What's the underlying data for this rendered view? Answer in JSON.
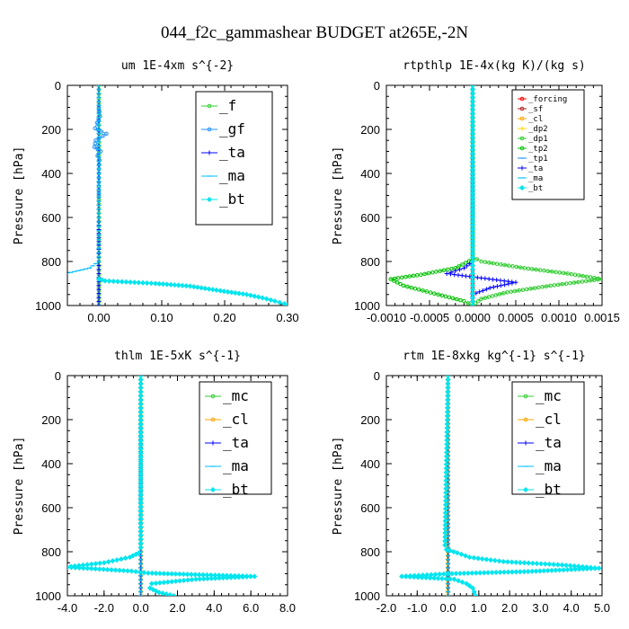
{
  "suptitle": "044_f2c_gammashear  BUDGET at265E,-2N",
  "colors": {
    "forcing": "#ff0000",
    "sf": "#b22222",
    "cl": "#ffa500",
    "dp2": "#ffd700",
    "dp1": "#32cd32",
    "tp2": "#00c000",
    "tp1": "#1e90ff",
    "ta": "#0000ff",
    "ma": "#00bfff",
    "bt": "#00e5ee",
    "f": "#32cd32",
    "gf": "#1e90ff",
    "mc": "#32cd32"
  },
  "chart_data": [
    {
      "type": "line",
      "title": "um  1E-4xm s^{-2}",
      "ylabel": "Pressure [hPa]",
      "xlim": [
        -0.05,
        0.3
      ],
      "ylim": [
        1000,
        0
      ],
      "xticks": [
        0.0,
        0.1,
        0.2,
        0.3
      ],
      "xtick_labels": [
        "0.00",
        "0.10",
        "0.20",
        "0.30"
      ],
      "yticks": [
        0,
        200,
        400,
        600,
        800,
        1000
      ],
      "ytick_labels": [
        "0",
        "200",
        "400",
        "600",
        "800",
        "1000"
      ],
      "legend_position": "top-right",
      "legend_style": "large",
      "series": [
        {
          "name": "_f",
          "color_key": "f",
          "x": [
            0,
            0,
            0,
            0,
            0,
            0,
            0,
            0,
            0,
            0,
            0,
            0
          ],
          "y": [
            0,
            100,
            200,
            300,
            400,
            500,
            600,
            700,
            800,
            900,
            950,
            1000
          ]
        },
        {
          "name": "_gf",
          "color_key": "gf",
          "x": [
            0.0,
            0.002,
            -0.003,
            -0.006,
            0.004,
            0.012,
            -0.005,
            -0.007,
            0.003,
            -0.002,
            0.001,
            0.0,
            0.0
          ],
          "y": [
            100,
            140,
            170,
            195,
            210,
            220,
            250,
            280,
            300,
            320,
            340,
            400,
            500
          ]
        },
        {
          "name": "_ta",
          "color_key": "ta",
          "x": [
            0,
            0,
            0,
            0,
            0,
            0
          ],
          "y": [
            0,
            200,
            400,
            600,
            800,
            1000
          ]
        },
        {
          "name": "_ma",
          "color_key": "ma",
          "x": [
            0.0,
            0.0,
            0.0,
            0.0,
            0.0,
            0.0,
            0.0,
            -0.015,
            -0.045,
            -0.06
          ],
          "y": [
            0,
            200,
            400,
            600,
            700,
            780,
            800,
            830,
            850,
            860
          ]
        },
        {
          "name": "_bt",
          "color_key": "bt",
          "x": [
            0.0,
            0.01,
            0.09,
            0.145,
            0.175,
            0.205,
            0.235,
            0.26,
            0.28,
            0.295,
            0.3
          ],
          "y": [
            880,
            888,
            900,
            912,
            925,
            938,
            950,
            965,
            980,
            992,
            1000
          ]
        }
      ]
    },
    {
      "type": "line",
      "title": "rtpthlp  1E-4x(kg K)/(kg s)",
      "ylabel": "Pressure [hPa]",
      "xlim": [
        -0.001,
        0.0015
      ],
      "ylim": [
        1000,
        0
      ],
      "xticks": [
        -0.001,
        -0.0005,
        0.0,
        0.0005,
        0.001,
        0.0015
      ],
      "xtick_labels": [
        "-0.0010",
        "-0.0005",
        "0.0000",
        "0.0005",
        "0.0010",
        "0.0015"
      ],
      "yticks": [
        0,
        200,
        400,
        600,
        800,
        1000
      ],
      "ytick_labels": [
        "0",
        "200",
        "400",
        "600",
        "800",
        "1000"
      ],
      "legend_position": "top-right",
      "legend_style": "small",
      "series": [
        {
          "name": "_forcing",
          "color_key": "forcing",
          "x": [
            0,
            0,
            0,
            0,
            0,
            0,
            0
          ],
          "y": [
            0,
            200,
            400,
            600,
            800,
            900,
            1000
          ]
        },
        {
          "name": "_sf",
          "color_key": "sf",
          "x": [
            0,
            0,
            0,
            0,
            0,
            0
          ],
          "y": [
            0,
            200,
            400,
            600,
            800,
            1000
          ]
        },
        {
          "name": "_cl",
          "color_key": "cl",
          "x": [
            0,
            0,
            0,
            0,
            0,
            0
          ],
          "y": [
            0,
            200,
            400,
            600,
            800,
            1000
          ]
        },
        {
          "name": "_dp2",
          "color_key": "dp2",
          "x": [
            0,
            0,
            0,
            0,
            0,
            0
          ],
          "y": [
            0,
            200,
            400,
            600,
            800,
            1000
          ]
        },
        {
          "name": "_dp1",
          "color_key": "dp1",
          "x": [
            0.0,
            0.0,
            0.0001,
            0.0006,
            0.0011,
            0.0015,
            0.0009,
            0.0004,
            0.0001,
            0.0
          ],
          "y": [
            0,
            780,
            800,
            830,
            855,
            880,
            910,
            940,
            970,
            1000
          ]
        },
        {
          "name": "_tp2",
          "color_key": "tp2",
          "x": [
            0.0,
            0.0,
            -0.0002,
            -0.0006,
            -0.00095,
            -0.0008,
            -0.0004,
            -0.0001,
            0.0
          ],
          "y": [
            0,
            790,
            830,
            860,
            880,
            910,
            950,
            980,
            1000
          ]
        },
        {
          "name": "_tp1",
          "color_key": "tp1",
          "x": [
            0,
            0,
            0,
            0,
            0
          ],
          "y": [
            0,
            200,
            500,
            800,
            1000
          ]
        },
        {
          "name": "_ta",
          "color_key": "ta",
          "x": [
            0.0,
            0.0,
            -0.0001,
            -0.0003,
            0.0001,
            0.0005,
            0.0002,
            0.0,
            0.0
          ],
          "y": [
            0,
            800,
            830,
            855,
            875,
            895,
            920,
            950,
            1000
          ]
        },
        {
          "name": "_ma",
          "color_key": "ma",
          "x": [
            0,
            0,
            0,
            0,
            0,
            0
          ],
          "y": [
            0,
            200,
            400,
            600,
            800,
            1000
          ]
        },
        {
          "name": "_bt",
          "color_key": "bt",
          "x": [
            0,
            0,
            0,
            0,
            0,
            0
          ],
          "y": [
            0,
            200,
            400,
            600,
            800,
            1000
          ]
        }
      ]
    },
    {
      "type": "line",
      "title": "thlm  1E-5xK s^{-1}",
      "ylabel": "Pressure [hPa]",
      "xlim": [
        -4.0,
        8.0
      ],
      "ylim": [
        1000,
        0
      ],
      "xticks": [
        -4.0,
        -2.0,
        0.0,
        2.0,
        4.0,
        6.0,
        8.0
      ],
      "xtick_labels": [
        "-4.0",
        "-2.0",
        "0.0",
        "2.0",
        "4.0",
        "6.0",
        "8.0"
      ],
      "yticks": [
        0,
        200,
        400,
        600,
        800,
        1000
      ],
      "ytick_labels": [
        "0",
        "200",
        "400",
        "600",
        "800",
        "1000"
      ],
      "legend_position": "top-right",
      "legend_style": "large",
      "series": [
        {
          "name": "_mc",
          "color_key": "mc",
          "x": [
            0,
            0,
            0,
            0,
            0,
            0
          ],
          "y": [
            0,
            200,
            400,
            600,
            800,
            1000
          ]
        },
        {
          "name": "_cl",
          "color_key": "cl",
          "x": [
            0,
            0,
            0,
            0,
            0,
            0
          ],
          "y": [
            0,
            200,
            400,
            600,
            800,
            1000
          ]
        },
        {
          "name": "_ta",
          "color_key": "ta",
          "x": [
            0,
            0,
            0,
            0,
            0,
            0
          ],
          "y": [
            0,
            200,
            400,
            600,
            800,
            1000
          ]
        },
        {
          "name": "_ma",
          "color_key": "ma",
          "x": [
            0,
            0,
            0,
            0,
            0,
            0
          ],
          "y": [
            0,
            200,
            400,
            600,
            800,
            1000
          ]
        },
        {
          "name": "_bt",
          "color_key": "bt",
          "x": [
            0.0,
            0.0,
            -0.1,
            -0.6,
            -2.0,
            -3.6,
            -4.0,
            -0.5,
            0.4,
            3.4,
            6.2,
            3.0,
            0.6,
            0.5,
            1.0,
            1.8
          ],
          "y": [
            0,
            780,
            805,
            825,
            850,
            865,
            870,
            888,
            897,
            905,
            912,
            925,
            945,
            965,
            985,
            1000
          ]
        }
      ]
    },
    {
      "type": "line",
      "title": "rtm  1E-8xkg kg^{-1} s^{-1}",
      "ylabel": "Pressure [hPa]",
      "xlim": [
        -2.0,
        5.0
      ],
      "ylim": [
        1000,
        0
      ],
      "xticks": [
        -2.0,
        -1.0,
        0.0,
        1.0,
        2.0,
        3.0,
        4.0,
        5.0
      ],
      "xtick_labels": [
        "-2.0",
        "-1.0",
        "0.0",
        "1.0",
        "2.0",
        "3.0",
        "4.0",
        "5.0"
      ],
      "yticks": [
        0,
        200,
        400,
        600,
        800,
        1000
      ],
      "ytick_labels": [
        "0",
        "200",
        "400",
        "600",
        "800",
        "1000"
      ],
      "legend_position": "top-right",
      "legend_style": "large",
      "series": [
        {
          "name": "_mc",
          "color_key": "mc",
          "x": [
            0,
            0,
            0,
            0,
            0,
            0
          ],
          "y": [
            0,
            200,
            400,
            600,
            800,
            1000
          ]
        },
        {
          "name": "_cl",
          "color_key": "cl",
          "x": [
            0,
            0,
            0,
            0,
            0,
            0
          ],
          "y": [
            0,
            200,
            400,
            600,
            800,
            1000
          ]
        },
        {
          "name": "_ta",
          "color_key": "ta",
          "x": [
            0,
            0,
            0,
            0,
            0,
            0
          ],
          "y": [
            0,
            200,
            400,
            600,
            800,
            1000
          ]
        },
        {
          "name": "_ma",
          "color_key": "ma",
          "x": [
            0,
            0,
            0,
            0,
            0,
            0
          ],
          "y": [
            0,
            200,
            400,
            600,
            800,
            1000
          ]
        },
        {
          "name": "_bt",
          "color_key": "bt",
          "x": [
            0.0,
            -0.1,
            -0.05,
            0.3,
            0.7,
            1.8,
            3.7,
            4.9,
            2.6,
            0.0,
            -1.5,
            0.2,
            0.6,
            0.8,
            0.9
          ],
          "y": [
            0,
            770,
            790,
            805,
            825,
            845,
            860,
            875,
            890,
            900,
            912,
            925,
            945,
            965,
            1000
          ]
        }
      ]
    }
  ]
}
